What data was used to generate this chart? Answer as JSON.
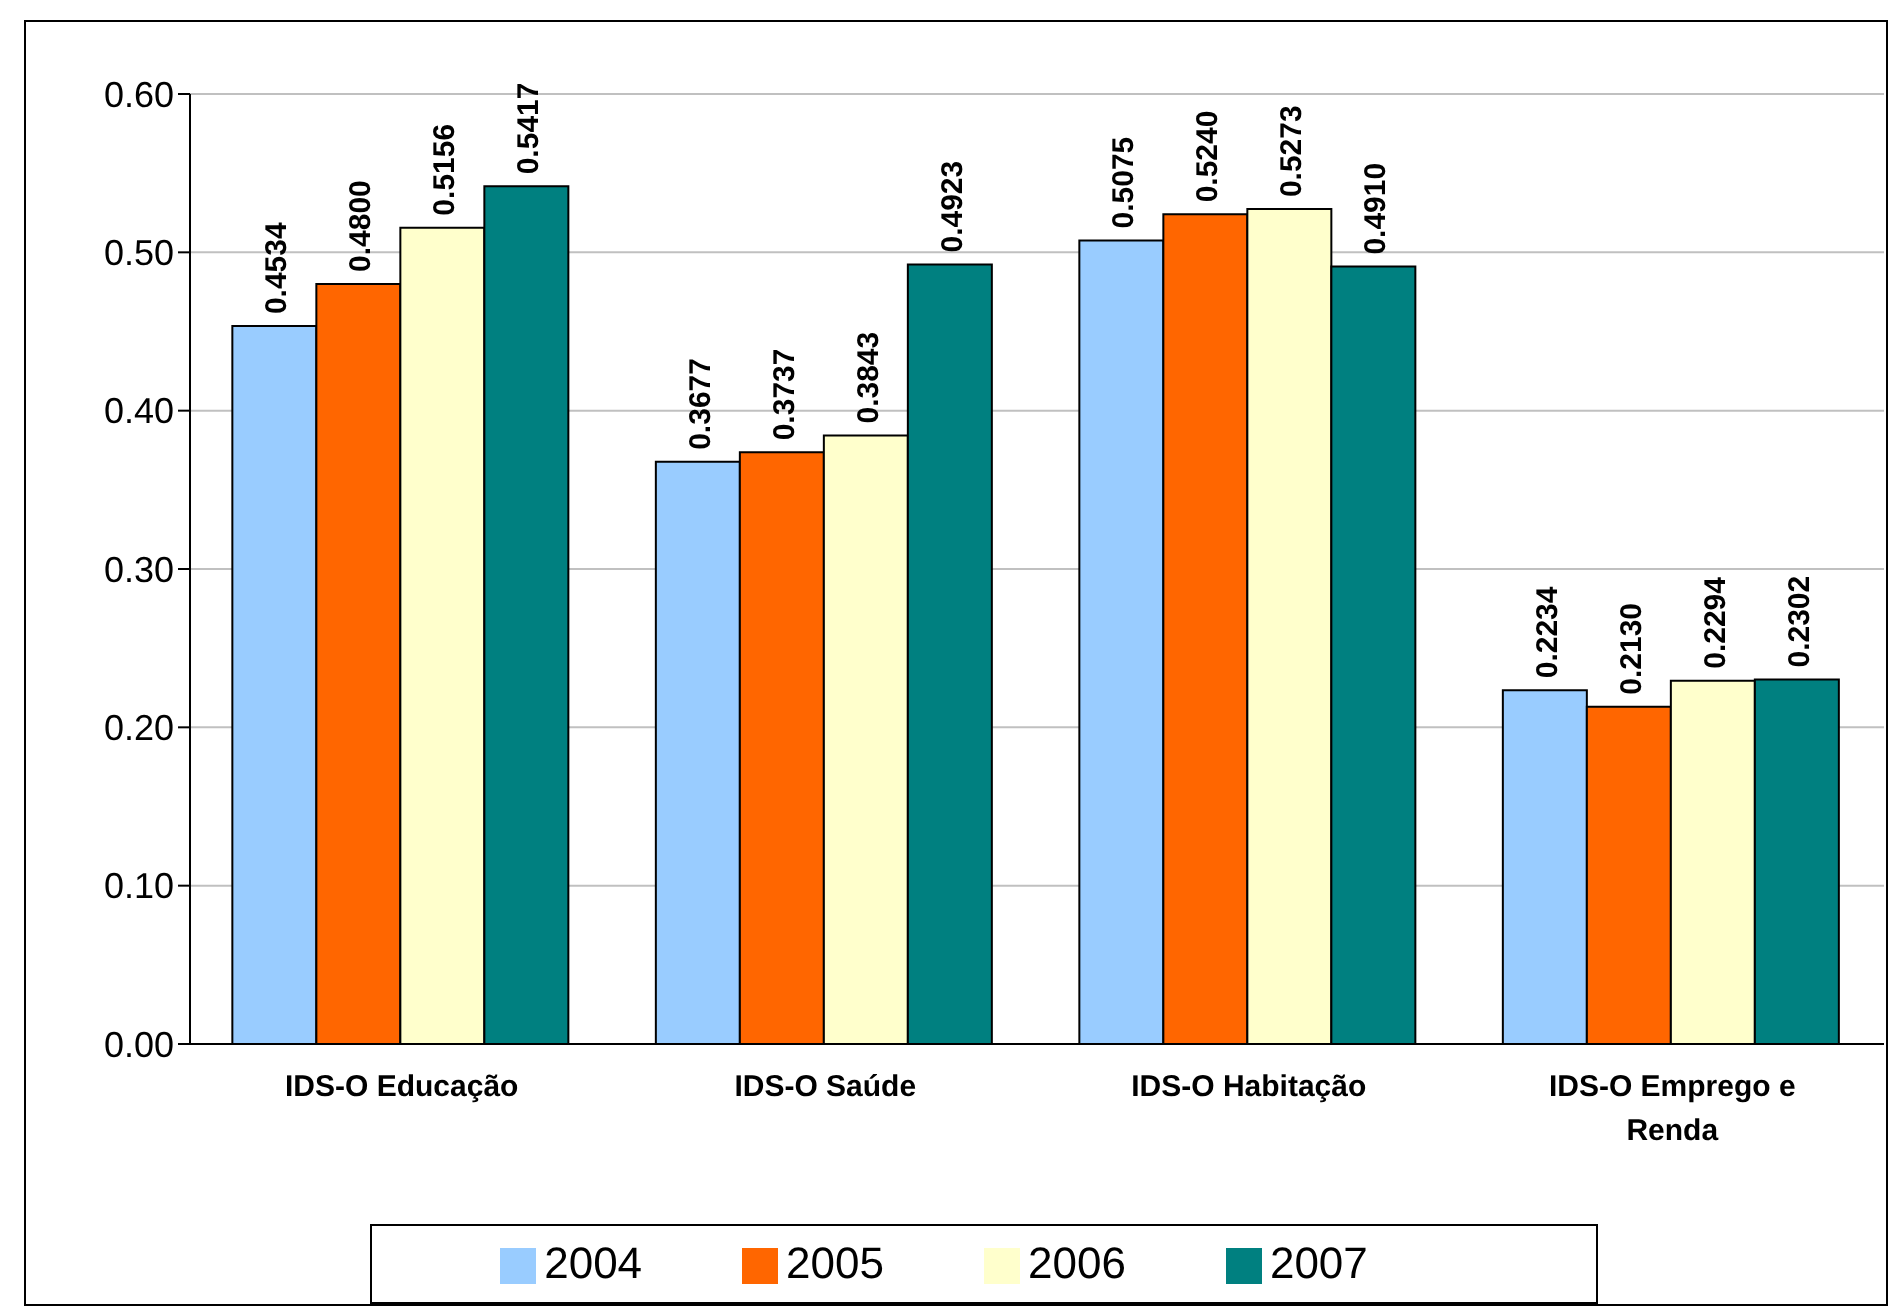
{
  "chart_data": {
    "type": "bar",
    "categories": [
      "IDS-O Educação",
      "IDS-O Saúde",
      "IDS-O Habitação",
      "IDS-O Emprego e Renda"
    ],
    "series": [
      {
        "name": "2004",
        "color": "#99ccff",
        "values": [
          0.4534,
          0.3677,
          0.5075,
          0.2234
        ],
        "value_labels": [
          "0.4534",
          "0.3677",
          "0.5075",
          "0.2234"
        ]
      },
      {
        "name": "2005",
        "color": "#ff6600",
        "values": [
          0.48,
          0.3737,
          0.524,
          0.213
        ],
        "value_labels": [
          "0.4800",
          "0.3737",
          "0.5240",
          "0.2130"
        ]
      },
      {
        "name": "2006",
        "color": "#ffffcc",
        "values": [
          0.5156,
          0.3843,
          0.5273,
          0.2294
        ],
        "value_labels": [
          "0.5156",
          "0.3843",
          "0.5273",
          "0.2294"
        ]
      },
      {
        "name": "2007",
        "color": "#008080",
        "values": [
          0.5417,
          0.4923,
          0.491,
          0.2302
        ],
        "value_labels": [
          "0.5417",
          "0.4923",
          "0.4910",
          "0.2302"
        ]
      }
    ],
    "ylim": [
      0,
      0.6
    ],
    "yticks": [
      {
        "value": 0,
        "label": "0.00"
      },
      {
        "value": 0.1,
        "label": "0.10"
      },
      {
        "value": 0.2,
        "label": "0.20"
      },
      {
        "value": 0.3,
        "label": "0.30"
      },
      {
        "value": 0.4,
        "label": "0.40"
      },
      {
        "value": 0.5,
        "label": "0.50"
      },
      {
        "value": 0.6,
        "label": "0.60"
      }
    ],
    "grid": "y",
    "legend": "bottom"
  }
}
